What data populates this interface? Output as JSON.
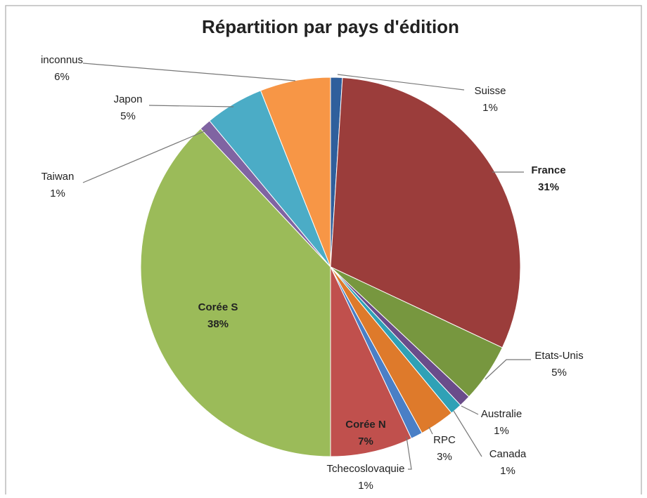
{
  "chart_data": {
    "type": "pie",
    "title": "Répartition par pays d'édition",
    "categories": [
      "Suisse",
      "France",
      "Etats-Unis",
      "Australie",
      "Canada",
      "RPC",
      "Tchecoslovaquie",
      "Corée  N",
      "Corée S",
      "Taiwan",
      "Japon",
      "inconnus"
    ],
    "values": [
      1,
      31,
      5,
      1,
      1,
      3,
      1,
      7,
      38,
      1,
      5,
      6
    ],
    "value_labels": [
      "1%",
      "31%",
      "5%",
      "1%",
      "1%",
      "3%",
      "1%",
      "7%",
      "38%",
      "1%",
      "5%",
      "6%"
    ],
    "colors": [
      "#2f5f9c",
      "#9b3d3b",
      "#77973f",
      "#6a4c8a",
      "#2fa1b6",
      "#de7a2b",
      "#4a7fc6",
      "#c0504d",
      "#9bbb59",
      "#8064a2",
      "#4bacc6",
      "#f79646"
    ]
  }
}
